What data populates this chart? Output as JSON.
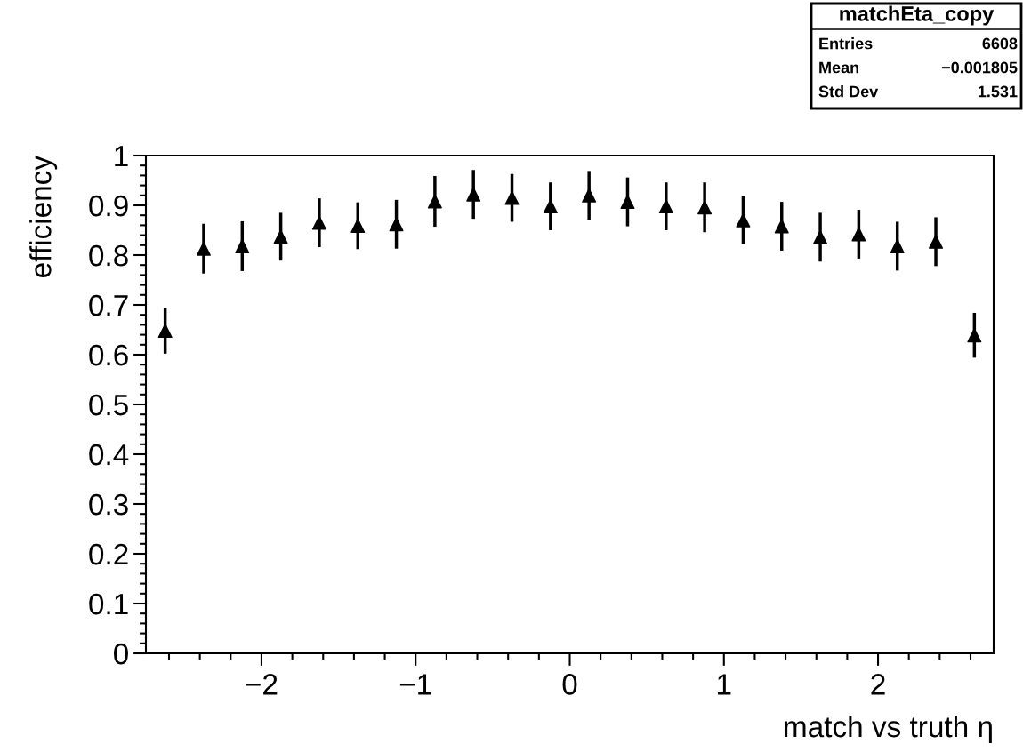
{
  "chart_data": {
    "type": "scatter",
    "xlabel": "match vs truth η",
    "ylabel": "efficiency",
    "annotations": [
      "matchEta_copy",
      "Entries",
      "6608",
      "Mean",
      "−0.001805",
      "Std Dev",
      "1.531"
    ],
    "x": [
      -2.625,
      -2.375,
      -2.125,
      -1.875,
      -1.625,
      -1.375,
      -1.125,
      -0.875,
      -0.625,
      -0.375,
      -0.125,
      0.125,
      0.375,
      0.625,
      0.875,
      1.125,
      1.375,
      1.625,
      1.875,
      2.125,
      2.375,
      2.625
    ],
    "series": [
      {
        "color": "#000000",
        "values": [
          0.648,
          0.813,
          0.818,
          0.837,
          0.865,
          0.859,
          0.862,
          0.908,
          0.922,
          0.915,
          0.898,
          0.92,
          0.907,
          0.898,
          0.896,
          0.87,
          0.858,
          0.836,
          0.842,
          0.818,
          0.827,
          0.639
        ],
        "errors": [
          0.046,
          0.05,
          0.05,
          0.048,
          0.049,
          0.047,
          0.049,
          0.051,
          0.049,
          0.048,
          0.048,
          0.049,
          0.049,
          0.048,
          0.05,
          0.048,
          0.049,
          0.049,
          0.049,
          0.049,
          0.049,
          0.045
        ]
      }
    ],
    "marker": "triangle",
    "xlim": [
      -2.75,
      2.75
    ],
    "xticks": [
      -2,
      -1,
      0,
      1,
      2
    ],
    "ylim": [
      0,
      1
    ],
    "yticks": [
      0,
      0.1,
      0.2,
      0.3,
      0.4,
      0.5,
      0.6,
      0.7,
      0.8,
      0.9,
      1
    ],
    "grid": false,
    "legend": false
  }
}
